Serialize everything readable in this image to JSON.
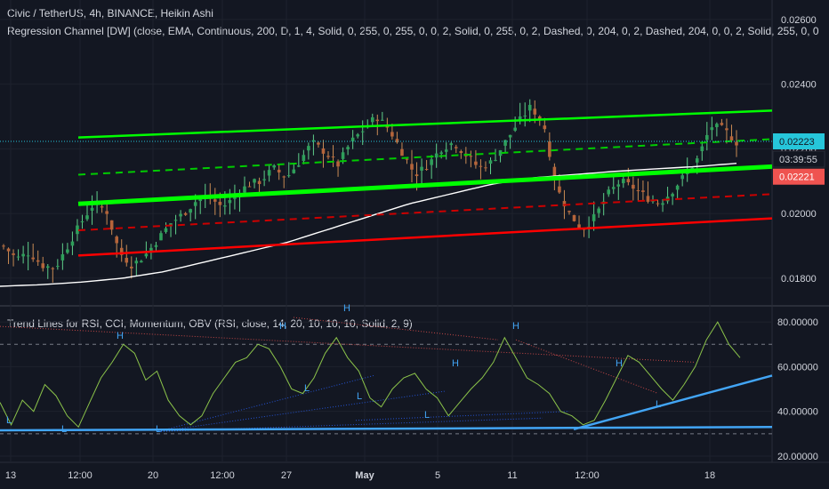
{
  "header": {
    "symbol_line": "Civic / TetherUS, 4h, BINANCE, Heikin Ashi",
    "indicator_line": "Regression Channel [DW] (close, EMA, Continuous, 200, D, 1, 4, Solid, 0, 255, 0, 255, 0, 0, 2, Solid, 0, 255, 0, 2, Dashed, 0, 204, 0, 2, Dashed, 204, 0, 0, 2, Solid, 255, 0, 0"
  },
  "oscillator": {
    "legend": "Trend Lines for RSI, CCI, Momentum, OBV (RSI, close, 14, 20, 10, 10, 10, Solid, 2, 9)"
  },
  "price_axis": {
    "ticks": [
      "0.02600",
      "0.02400",
      "0.02200",
      "0.02000",
      "0.01800"
    ],
    "badges": [
      {
        "label": "0.02223",
        "color": "#26c6da",
        "text_color": "#131722"
      },
      {
        "label": "03:39:55",
        "color": "#131722",
        "text_color": "#d1d4dc"
      },
      {
        "label": "0.02221",
        "color": "#ef5350",
        "text_color": "#ffffff"
      }
    ]
  },
  "osc_axis": {
    "ticks": [
      "80.00000",
      "60.00000",
      "40.00000",
      "20.00000"
    ]
  },
  "time_axis": {
    "ticks": [
      "13",
      "12:00",
      "20",
      "12:00",
      "27",
      "May",
      "5",
      "11",
      "12:00",
      "18"
    ]
  },
  "osc_markers": [
    "H",
    "H",
    "H",
    "H",
    "H",
    "H",
    "L",
    "L",
    "L",
    "L",
    "L",
    "L",
    "L"
  ],
  "chart_data": [
    {
      "type": "candlestick",
      "title": "Civic / TetherUS, 4h, BINANCE, Heikin Ashi",
      "ylim": [
        0.0172,
        0.0266
      ],
      "colors": {
        "up": "#26a69a",
        "down": "#ef5350",
        "channel_upper": "#00ff00",
        "channel_mid": "#00ff00",
        "channel_dashed_up": "#00cc00",
        "channel_dashed_down": "#cc0000",
        "channel_lower": "#ff0000",
        "ema": "#ffffff"
      },
      "close_path": [
        0.019,
        0.0186,
        0.0188,
        0.0184,
        0.0183,
        0.019,
        0.0197,
        0.0203,
        0.0201,
        0.0188,
        0.0184,
        0.0187,
        0.0192,
        0.0197,
        0.02,
        0.0204,
        0.0205,
        0.0202,
        0.0205,
        0.0209,
        0.021,
        0.0214,
        0.0211,
        0.0216,
        0.0222,
        0.0219,
        0.0215,
        0.0222,
        0.0226,
        0.023,
        0.0226,
        0.0219,
        0.0212,
        0.0215,
        0.022,
        0.0222,
        0.0218,
        0.0214,
        0.0216,
        0.0222,
        0.0228,
        0.0233,
        0.0228,
        0.0208,
        0.02,
        0.0195,
        0.0199,
        0.0206,
        0.021,
        0.0208,
        0.0205,
        0.0203,
        0.0207,
        0.0212,
        0.0217,
        0.0227,
        0.0226,
        0.0222
      ],
      "channel": {
        "upper": [
          0.02235,
          0.02318
        ],
        "dashed_upper": [
          0.0212,
          0.0223
        ],
        "middle": [
          0.0203,
          0.02145
        ],
        "dashed_lower": [
          0.01948,
          0.0206
        ],
        "lower": [
          0.0187,
          0.01985
        ]
      },
      "ema": [
        0.01775,
        0.0178,
        0.01788,
        0.018,
        0.0182,
        0.0185,
        0.0188,
        0.0191,
        0.0195,
        0.0199,
        0.0203,
        0.0206,
        0.0209,
        0.0211,
        0.0212,
        0.0213,
        0.02138,
        0.02145,
        0.02155
      ]
    },
    {
      "type": "line",
      "title": "Trend Lines for RSI, CCI, Momentum, OBV (RSI, close, 14, 20, 10, 10, 10, Solid, 2, 9)",
      "ylim": [
        18,
        86
      ],
      "levels": [
        70,
        30
      ],
      "series": [
        {
          "name": "RSI",
          "values": [
            44,
            34,
            45,
            40,
            52,
            47,
            38,
            33,
            44,
            55,
            62,
            70,
            66,
            54,
            58,
            45,
            38,
            34,
            38,
            48,
            55,
            62,
            64,
            70,
            68,
            60,
            50,
            48,
            55,
            66,
            73,
            64,
            58,
            46,
            42,
            50,
            55,
            57,
            50,
            46,
            38,
            44,
            50,
            55,
            62,
            73,
            64,
            55,
            52,
            48,
            40,
            38,
            34,
            36,
            45,
            55,
            65,
            62,
            56,
            50,
            45,
            52,
            60,
            72,
            80,
            70,
            64
          ]
        }
      ],
      "trend_lines": {
        "support_blue": [
          [
            0,
            31.5
          ],
          [
            66,
            33
          ]
        ],
        "rising_blue": [
          [
            48,
            32
          ],
          [
            66,
            56
          ]
        ]
      }
    }
  ]
}
